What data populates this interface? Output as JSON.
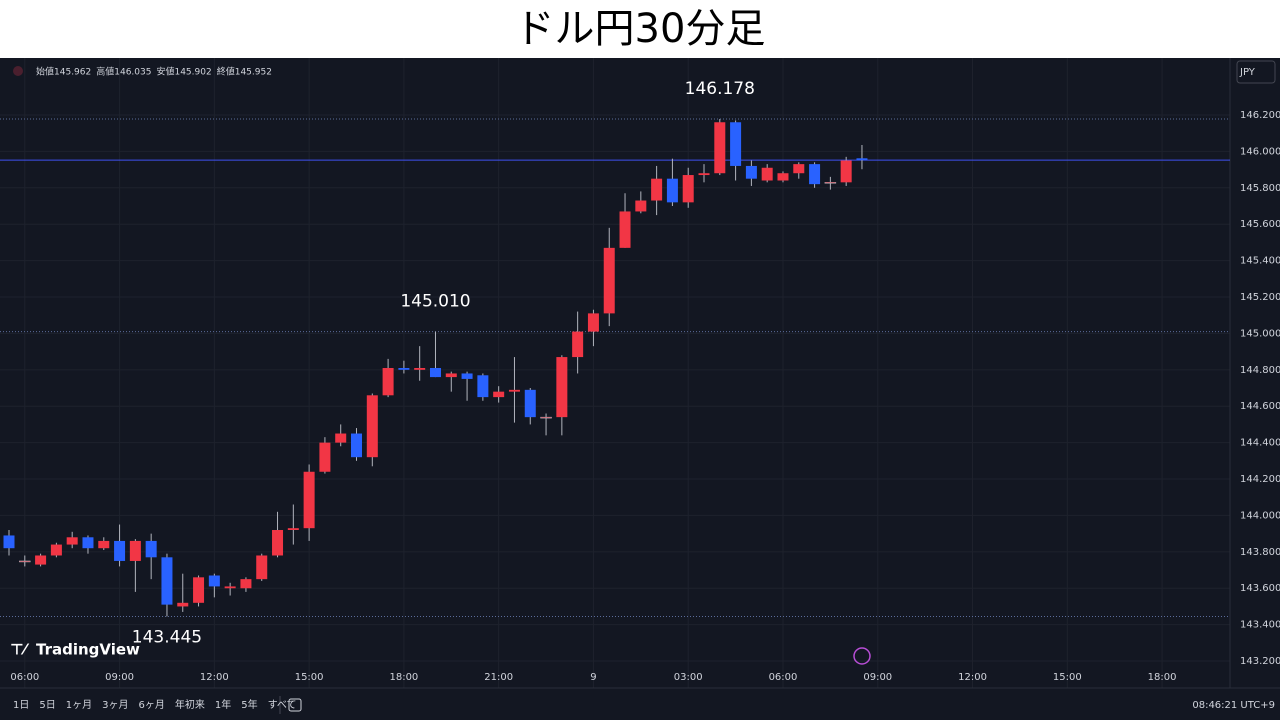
{
  "chart_data": {
    "type": "candlestick",
    "title": "ドル円30分足",
    "symbol_legend": [
      {
        "label": "始値",
        "value": "145.962"
      },
      {
        "label": "高値",
        "value": "146.035"
      },
      {
        "label": "安値",
        "value": "145.902"
      },
      {
        "label": "終値",
        "value": "145.952"
      }
    ],
    "currency": "JPY",
    "brand": "TradingView",
    "ranges": [
      "1日",
      "5日",
      "1ヶ月",
      "3ヶ月",
      "6ヶ月",
      "年初来",
      "1年",
      "5年",
      "すべて"
    ],
    "clock": "08:46:21 UTC+9",
    "up_color": "#f23645",
    "down_color": "#2962ff",
    "x": [
      0,
      1,
      2,
      3,
      4,
      5,
      6,
      7,
      8,
      9,
      10,
      11,
      12,
      13,
      14,
      15,
      16,
      17,
      18,
      19,
      20,
      21,
      22,
      23,
      24,
      25,
      26,
      27,
      28,
      29,
      30,
      31,
      32,
      33,
      34,
      35,
      36,
      37,
      38,
      39,
      40,
      41,
      42,
      43,
      44,
      45,
      46,
      47,
      48,
      49,
      50,
      51,
      52,
      53,
      54
    ],
    "open": [
      143.89,
      143.75,
      143.73,
      143.78,
      143.84,
      143.88,
      143.82,
      143.86,
      143.75,
      143.86,
      143.77,
      143.5,
      143.52,
      143.67,
      143.6,
      143.6,
      143.65,
      143.78,
      143.92,
      143.93,
      144.24,
      144.4,
      144.45,
      144.32,
      144.66,
      144.81,
      144.8,
      144.81,
      144.76,
      144.78,
      144.77,
      144.65,
      144.68,
      144.69,
      144.54,
      144.54,
      144.87,
      145.01,
      145.11,
      145.47,
      145.67,
      145.73,
      145.85,
      145.72,
      145.87,
      145.88,
      146.16,
      145.92,
      145.84,
      145.84,
      145.88,
      145.93,
      145.83,
      145.83,
      145.962
    ],
    "high": [
      143.92,
      143.78,
      143.79,
      143.85,
      143.91,
      143.89,
      143.88,
      143.95,
      143.87,
      143.9,
      143.79,
      143.68,
      143.67,
      143.68,
      143.63,
      143.66,
      143.79,
      144.02,
      144.06,
      144.28,
      144.43,
      144.5,
      144.48,
      144.67,
      144.86,
      144.85,
      144.93,
      145.01,
      144.79,
      144.79,
      144.78,
      144.71,
      144.87,
      144.7,
      144.56,
      144.88,
      145.12,
      145.13,
      145.58,
      145.77,
      145.78,
      145.92,
      145.96,
      145.91,
      145.93,
      146.178,
      146.17,
      145.95,
      145.93,
      145.89,
      145.94,
      145.94,
      145.86,
      145.97,
      146.035
    ],
    "low": [
      143.78,
      143.72,
      143.72,
      143.77,
      143.82,
      143.79,
      143.81,
      143.72,
      143.58,
      143.65,
      143.445,
      143.47,
      143.5,
      143.55,
      143.56,
      143.58,
      143.64,
      143.77,
      143.84,
      143.86,
      144.23,
      144.38,
      144.3,
      144.27,
      144.65,
      144.78,
      144.74,
      144.76,
      144.68,
      144.63,
      144.63,
      144.62,
      144.51,
      144.5,
      144.44,
      144.44,
      144.78,
      144.93,
      145.04,
      145.47,
      145.66,
      145.65,
      145.7,
      145.69,
      145.83,
      145.87,
      145.84,
      145.81,
      145.83,
      145.83,
      145.85,
      145.8,
      145.79,
      145.81,
      145.902
    ],
    "close": [
      143.82,
      143.75,
      143.78,
      143.84,
      143.88,
      143.82,
      143.86,
      143.75,
      143.86,
      143.77,
      143.51,
      143.52,
      143.66,
      143.61,
      143.61,
      143.65,
      143.78,
      143.92,
      143.93,
      144.24,
      144.4,
      144.45,
      144.32,
      144.66,
      144.81,
      144.8,
      144.81,
      144.76,
      144.78,
      144.75,
      144.65,
      144.68,
      144.69,
      144.54,
      144.54,
      144.87,
      145.01,
      145.11,
      145.47,
      145.67,
      145.73,
      145.85,
      145.72,
      145.87,
      145.88,
      146.16,
      145.92,
      145.85,
      145.91,
      145.88,
      145.93,
      145.82,
      145.83,
      145.95,
      145.952
    ],
    "xlim": [
      -0.57,
      77.3
    ],
    "xticks": [
      {
        "value": 1,
        "label": "06:00"
      },
      {
        "value": 7,
        "label": "09:00"
      },
      {
        "value": 13,
        "label": "12:00"
      },
      {
        "value": 19,
        "label": "15:00"
      },
      {
        "value": 25,
        "label": "18:00"
      },
      {
        "value": 31,
        "label": "21:00"
      },
      {
        "value": 37,
        "label": "9"
      },
      {
        "value": 43,
        "label": "03:00"
      },
      {
        "value": 49,
        "label": "06:00"
      },
      {
        "value": 55,
        "label": "09:00"
      },
      {
        "value": 61,
        "label": "12:00"
      },
      {
        "value": 67,
        "label": "15:00"
      },
      {
        "value": 73,
        "label": "18:00"
      }
    ],
    "ylim": [
      143.052,
      146.513
    ],
    "yticks": [
      {
        "value": 143.2,
        "label": "143.200"
      },
      {
        "value": 143.4,
        "label": "143.400"
      },
      {
        "value": 143.6,
        "label": "143.600"
      },
      {
        "value": 143.8,
        "label": "143.800"
      },
      {
        "value": 144.0,
        "label": "144.000"
      },
      {
        "value": 144.2,
        "label": "144.200"
      },
      {
        "value": 144.4,
        "label": "144.400"
      },
      {
        "value": 144.6,
        "label": "144.600"
      },
      {
        "value": 144.8,
        "label": "144.800"
      },
      {
        "value": 145.0,
        "label": "145.000"
      },
      {
        "value": 145.2,
        "label": "145.200"
      },
      {
        "value": 145.4,
        "label": "145.400"
      },
      {
        "value": 145.6,
        "label": "145.600"
      },
      {
        "value": 145.8,
        "label": "145.800"
      },
      {
        "value": 146.0,
        "label": "146.000"
      },
      {
        "value": 146.2,
        "label": "146.200"
      }
    ],
    "grid": true,
    "annotations": [
      {
        "x": 45,
        "value": 146.178,
        "label": "146.178"
      },
      {
        "x": 27,
        "value": 145.01,
        "label": "145.010"
      },
      {
        "x": 10,
        "value": 143.445,
        "label": "143.445"
      }
    ]
  }
}
